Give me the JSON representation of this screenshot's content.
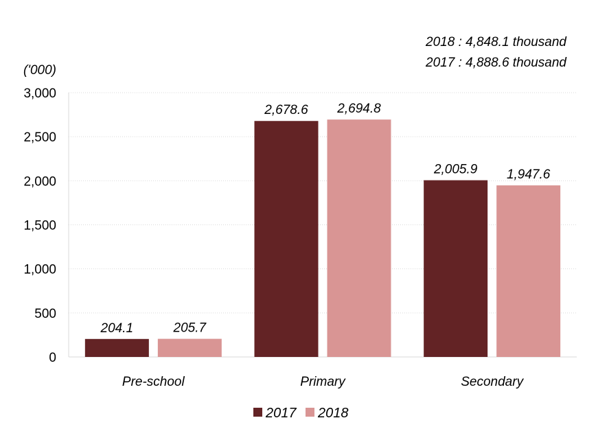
{
  "chart_data": {
    "type": "bar",
    "title": "",
    "unit_label": "('000)",
    "xlabel": "",
    "ylabel": "('000)",
    "categories": [
      "Pre-school",
      "Primary",
      "Secondary"
    ],
    "series": [
      {
        "name": "2017",
        "color": "#632325",
        "values": [
          204.1,
          2678.6,
          2005.9
        ],
        "labels": [
          "204.1",
          "2,678.6",
          "2,005.9"
        ]
      },
      {
        "name": "2018",
        "color": "#d99594",
        "values": [
          205.7,
          2694.8,
          1947.6
        ],
        "labels": [
          "205.7",
          "2,694.8",
          "1,947.6"
        ]
      }
    ],
    "ylim": [
      0,
      3000
    ],
    "yticks": [
      0,
      500,
      1000,
      1500,
      2000,
      2500,
      3000
    ],
    "ytick_labels": [
      "0",
      "500",
      "1,000",
      "1,500",
      "2,000",
      "2,500",
      "3,000"
    ],
    "grid": true,
    "legend": {
      "placement": "bottom",
      "entries": [
        "2017",
        "2018"
      ]
    },
    "annotations": [
      "2018 : 4,848.1 thousand",
      "2017 : 4,888.6 thousand"
    ]
  }
}
